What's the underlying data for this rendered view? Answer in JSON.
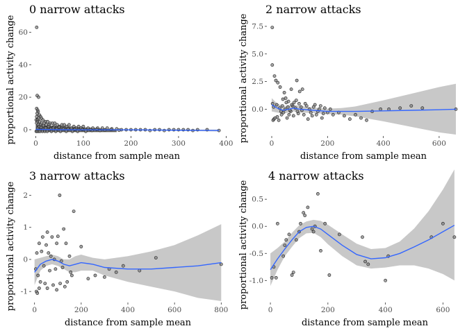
{
  "chart_data": [
    {
      "type": "scatter",
      "title": "0 narrow attacks",
      "xlabel": "distance from sample mean",
      "ylabel": "proportional activity change",
      "xlim": [
        -5,
        395
      ],
      "ylim": [
        -3,
        67
      ],
      "xticks": [
        0,
        100,
        200,
        300,
        400
      ],
      "yticks": [
        0,
        20,
        40,
        60
      ],
      "yticklabels": [
        "0",
        "20",
        "40",
        "60"
      ],
      "grid": false,
      "points": [
        [
          2,
          63
        ],
        [
          3,
          21
        ],
        [
          6,
          20
        ],
        [
          2,
          13
        ],
        [
          4,
          12
        ],
        [
          5,
          11
        ],
        [
          3,
          10
        ],
        [
          8,
          9
        ],
        [
          2,
          8
        ],
        [
          10,
          8
        ],
        [
          6,
          7
        ],
        [
          12,
          7
        ],
        [
          1,
          6
        ],
        [
          15,
          6
        ],
        [
          4,
          6
        ],
        [
          20,
          5
        ],
        [
          8,
          5
        ],
        [
          25,
          5
        ],
        [
          3,
          5
        ],
        [
          30,
          4
        ],
        [
          12,
          4
        ],
        [
          35,
          4
        ],
        [
          40,
          4
        ],
        [
          18,
          4
        ],
        [
          2,
          4
        ],
        [
          45,
          3
        ],
        [
          55,
          3
        ],
        [
          22,
          3
        ],
        [
          60,
          3
        ],
        [
          70,
          3
        ],
        [
          10,
          3
        ],
        [
          5,
          3
        ],
        [
          28,
          3
        ],
        [
          80,
          2
        ],
        [
          90,
          2
        ],
        [
          100,
          2
        ],
        [
          38,
          2
        ],
        [
          50,
          2
        ],
        [
          65,
          2
        ],
        [
          110,
          1
        ],
        [
          120,
          1
        ],
        [
          130,
          1
        ],
        [
          75,
          1
        ],
        [
          85,
          1
        ],
        [
          95,
          1
        ],
        [
          140,
          1
        ],
        [
          150,
          1
        ],
        [
          160,
          0.5
        ],
        [
          170,
          0.5
        ],
        [
          180,
          0
        ],
        [
          190,
          0
        ],
        [
          200,
          0
        ],
        [
          210,
          0
        ],
        [
          220,
          0
        ],
        [
          230,
          0
        ],
        [
          240,
          -0.5
        ],
        [
          250,
          0
        ],
        [
          260,
          0
        ],
        [
          270,
          -0.5
        ],
        [
          280,
          0
        ],
        [
          290,
          0
        ],
        [
          300,
          0
        ],
        [
          310,
          0
        ],
        [
          320,
          0
        ],
        [
          330,
          -0.5
        ],
        [
          340,
          0
        ],
        [
          360,
          0
        ],
        [
          385,
          -0.5
        ],
        [
          1,
          -1
        ],
        [
          3,
          -1
        ],
        [
          6,
          -1
        ],
        [
          9,
          -1
        ],
        [
          14,
          -1
        ],
        [
          19,
          -1
        ],
        [
          24,
          -1
        ],
        [
          33,
          -1
        ],
        [
          42,
          -1
        ],
        [
          52,
          -1
        ],
        [
          64,
          -1
        ],
        [
          77,
          -1
        ],
        [
          88,
          -1
        ],
        [
          105,
          -1
        ],
        [
          118,
          -0.5
        ],
        [
          135,
          -0.5
        ],
        [
          4,
          1
        ],
        [
          7,
          2
        ],
        [
          11,
          1.5
        ],
        [
          16,
          2.5
        ],
        [
          21,
          1
        ],
        [
          27,
          2
        ],
        [
          32,
          0.5
        ],
        [
          37,
          1
        ],
        [
          44,
          0.5
        ],
        [
          49,
          1.5
        ],
        [
          58,
          0.5
        ],
        [
          68,
          0.5
        ],
        [
          82,
          0.3
        ],
        [
          98,
          0.2
        ],
        [
          115,
          0.1
        ],
        [
          128,
          0.3
        ],
        [
          145,
          -0.2
        ],
        [
          158,
          0.1
        ],
        [
          175,
          -0.3
        ]
      ],
      "dense_band": {
        "x_from": 0,
        "x_to": 170,
        "y_from": -1,
        "y_to": 3
      },
      "smooth": {
        "x": [
          0,
          20,
          50,
          100,
          150,
          200,
          250,
          300,
          350,
          385
        ],
        "y": [
          0.2,
          0.1,
          0,
          -0.1,
          -0.1,
          -0.1,
          -0.2,
          -0.3,
          -0.4,
          -0.5
        ]
      },
      "band": {
        "lower": [
          -0.4,
          -0.3,
          -0.3,
          -0.3,
          -0.3,
          -0.4,
          -0.5,
          -0.7,
          -0.9,
          -1.1
        ],
        "upper": [
          0.8,
          0.5,
          0.3,
          0.1,
          0.1,
          0.2,
          0.1,
          0.1,
          0.1,
          0.1
        ]
      }
    },
    {
      "type": "scatter",
      "title": "2 narrow attacks",
      "xlabel": "distance from sample mean",
      "ylabel": "proportional activity change",
      "xlim": [
        -10,
        660
      ],
      "ylim": [
        -2.3,
        8.0
      ],
      "xticks": [
        0,
        200,
        400,
        600
      ],
      "yticks": [
        0,
        2.5,
        5,
        7.5
      ],
      "yticklabels": [
        "0.0",
        "2.5",
        "5.0",
        "7.5"
      ],
      "grid": false,
      "points": [
        [
          2,
          7.4
        ],
        [
          2,
          4.0
        ],
        [
          10,
          3.0
        ],
        [
          15,
          2.6
        ],
        [
          22,
          2.4
        ],
        [
          30,
          2.0
        ],
        [
          45,
          1.5
        ],
        [
          70,
          1.8
        ],
        [
          90,
          2.6
        ],
        [
          100,
          1.6
        ],
        [
          110,
          1.8
        ],
        [
          50,
          1.0
        ],
        [
          40,
          0.9
        ],
        [
          60,
          0.7
        ],
        [
          80,
          0.6
        ],
        [
          5,
          -1.0
        ],
        [
          8,
          -0.9
        ],
        [
          12,
          -0.8
        ],
        [
          20,
          -0.7
        ],
        [
          25,
          -1.0
        ],
        [
          35,
          -0.5
        ],
        [
          42,
          -0.3
        ],
        [
          48,
          0.0
        ],
        [
          55,
          -0.8
        ],
        [
          62,
          -0.5
        ],
        [
          68,
          -0.2
        ],
        [
          75,
          0.3
        ],
        [
          85,
          0.1
        ],
        [
          95,
          -0.4
        ],
        [
          105,
          0.2
        ],
        [
          115,
          -0.5
        ],
        [
          120,
          0.5
        ],
        [
          130,
          -0.9
        ],
        [
          140,
          -0.3
        ],
        [
          150,
          0.2
        ],
        [
          160,
          -0.5
        ],
        [
          170,
          0.0
        ],
        [
          180,
          -0.8
        ],
        [
          190,
          0.1
        ],
        [
          200,
          -0.3
        ],
        [
          210,
          0.0
        ],
        [
          220,
          -0.5
        ],
        [
          240,
          -0.3
        ],
        [
          260,
          -0.6
        ],
        [
          280,
          -0.9
        ],
        [
          300,
          -0.5
        ],
        [
          320,
          -0.8
        ],
        [
          340,
          -1.0
        ],
        [
          360,
          -0.2
        ],
        [
          390,
          0.0
        ],
        [
          420,
          0.0
        ],
        [
          460,
          0.1
        ],
        [
          500,
          0.3
        ],
        [
          540,
          0.1
        ],
        [
          660,
          0.0
        ],
        [
          3,
          0.5
        ],
        [
          7,
          0.2
        ],
        [
          18,
          0.4
        ],
        [
          28,
          0.1
        ],
        [
          33,
          -0.2
        ],
        [
          38,
          0.3
        ],
        [
          52,
          0.6
        ],
        [
          58,
          0.2
        ],
        [
          65,
          -0.1
        ],
        [
          72,
          0.4
        ],
        [
          78,
          -0.6
        ],
        [
          88,
          0.8
        ],
        [
          92,
          -0.2
        ],
        [
          98,
          0.5
        ],
        [
          108,
          -0.1
        ],
        [
          125,
          0.3
        ],
        [
          135,
          0.0
        ],
        [
          145,
          -0.6
        ],
        [
          155,
          0.4
        ],
        [
          165,
          -0.2
        ],
        [
          175,
          0.3
        ],
        [
          185,
          -0.4
        ]
      ],
      "smooth": {
        "x": [
          0,
          20,
          40,
          60,
          80,
          100,
          150,
          200,
          250,
          300,
          400,
          500,
          600,
          660
        ],
        "y": [
          0.4,
          0.1,
          -0.1,
          0.0,
          0.1,
          0.0,
          -0.1,
          -0.2,
          -0.2,
          -0.2,
          -0.15,
          -0.1,
          -0.05,
          0.0
        ]
      },
      "band": {
        "lower": [
          -0.2,
          -0.3,
          -0.4,
          -0.3,
          -0.2,
          -0.3,
          -0.35,
          -0.45,
          -0.5,
          -0.65,
          -1.1,
          -1.6,
          -2.1,
          -2.3
        ],
        "upper": [
          1.0,
          0.5,
          0.3,
          0.3,
          0.4,
          0.3,
          0.15,
          0.05,
          0.1,
          0.25,
          0.8,
          1.4,
          2.0,
          2.3
        ]
      }
    },
    {
      "type": "scatter",
      "title": "3 narrow attacks",
      "xlabel": "distance from sample mean",
      "ylabel": "proportional activity change",
      "xlim": [
        -5,
        805
      ],
      "ylim": [
        -1.3,
        2.25
      ],
      "xticks": [
        0,
        200,
        400,
        600,
        800
      ],
      "yticks": [
        -1,
        0,
        1,
        2
      ],
      "yticklabels": [
        "-1",
        "0",
        "1",
        "2"
      ],
      "grid": false,
      "points": [
        [
          108,
          2.0
        ],
        [
          168,
          1.5
        ],
        [
          125,
          0.95
        ],
        [
          55,
          0.85
        ],
        [
          100,
          0.72
        ],
        [
          75,
          0.7
        ],
        [
          35,
          0.7
        ],
        [
          50,
          0.45
        ],
        [
          20,
          0.5
        ],
        [
          95,
          0.5
        ],
        [
          135,
          0.5
        ],
        [
          10,
          0.2
        ],
        [
          30,
          0.25
        ],
        [
          60,
          0.2
        ],
        [
          70,
          0.1
        ],
        [
          85,
          0.0
        ],
        [
          115,
          -0.05
        ],
        [
          150,
          0.1
        ],
        [
          40,
          -0.2
        ],
        [
          65,
          -0.35
        ],
        [
          90,
          -0.3
        ],
        [
          120,
          -0.25
        ],
        [
          155,
          -0.4
        ],
        [
          5,
          -0.3
        ],
        [
          15,
          -0.5
        ],
        [
          25,
          -0.7
        ],
        [
          45,
          -0.75
        ],
        [
          80,
          -0.8
        ],
        [
          110,
          -0.75
        ],
        [
          140,
          -0.7
        ],
        [
          8,
          -1.0
        ],
        [
          12,
          -1.05
        ],
        [
          20,
          -0.9
        ],
        [
          55,
          -0.9
        ],
        [
          95,
          -0.95
        ],
        [
          130,
          -0.85
        ],
        [
          160,
          -0.5
        ],
        [
          200,
          0.4
        ],
        [
          230,
          -0.6
        ],
        [
          260,
          -0.5
        ],
        [
          300,
          -0.55
        ],
        [
          320,
          -0.3
        ],
        [
          350,
          -0.4
        ],
        [
          380,
          -0.2
        ],
        [
          450,
          -0.35
        ],
        [
          520,
          0.05
        ],
        [
          800,
          -0.15
        ]
      ],
      "smooth": {
        "x": [
          0,
          25,
          50,
          75,
          100,
          125,
          150,
          175,
          200,
          250,
          300,
          400,
          500,
          600,
          700,
          800
        ],
        "y": [
          -0.4,
          -0.15,
          -0.05,
          0.0,
          -0.05,
          -0.15,
          -0.2,
          -0.15,
          -0.1,
          -0.15,
          -0.25,
          -0.3,
          -0.3,
          -0.25,
          -0.2,
          -0.1
        ]
      },
      "band": {
        "lower": [
          -0.8,
          -0.35,
          -0.2,
          -0.15,
          -0.2,
          -0.3,
          -0.4,
          -0.4,
          -0.35,
          -0.35,
          -0.5,
          -0.7,
          -0.85,
          -1.0,
          -1.2,
          -1.3
        ],
        "upper": [
          0.0,
          0.05,
          0.1,
          0.15,
          0.1,
          0.0,
          0.0,
          0.1,
          0.15,
          0.05,
          0.0,
          0.1,
          0.25,
          0.45,
          0.75,
          1.1
        ]
      }
    },
    {
      "type": "scatter",
      "title": "4 narrow attacks",
      "xlabel": "distance from sample mean",
      "ylabel": "proportional activity change",
      "xlim": [
        -5,
        645
      ],
      "ylim": [
        -1.38,
        0.72
      ],
      "xticks": [
        0,
        200,
        400,
        600
      ],
      "yticks": [
        -1,
        -0.5,
        0,
        0.5
      ],
      "yticklabels": [
        "-1.0",
        "-0.5",
        "0.0",
        "0.5"
      ],
      "grid": false,
      "points": [
        [
          5,
          -0.95
        ],
        [
          12,
          -0.75
        ],
        [
          20,
          -0.95
        ],
        [
          25,
          0.05
        ],
        [
          45,
          -0.55
        ],
        [
          50,
          -0.35
        ],
        [
          55,
          -0.25
        ],
        [
          65,
          -0.15
        ],
        [
          75,
          -0.9
        ],
        [
          80,
          -0.85
        ],
        [
          90,
          -0.25
        ],
        [
          100,
          -0.1
        ],
        [
          105,
          0.05
        ],
        [
          115,
          0.25
        ],
        [
          120,
          0.2
        ],
        [
          130,
          0.35
        ],
        [
          145,
          -0.05
        ],
        [
          150,
          -0.1
        ],
        [
          155,
          0.0
        ],
        [
          165,
          0.6
        ],
        [
          175,
          -0.45
        ],
        [
          190,
          0.05
        ],
        [
          205,
          -0.9
        ],
        [
          240,
          -0.15
        ],
        [
          320,
          -0.2
        ],
        [
          330,
          -0.65
        ],
        [
          340,
          -0.7
        ],
        [
          400,
          -1.0
        ],
        [
          410,
          -0.55
        ],
        [
          560,
          -0.2
        ],
        [
          600,
          0.05
        ],
        [
          640,
          -0.2
        ]
      ],
      "smooth": {
        "x": [
          0,
          25,
          50,
          75,
          100,
          125,
          150,
          175,
          200,
          250,
          300,
          350,
          400,
          450,
          500,
          550,
          600,
          640
        ],
        "y": [
          -0.8,
          -0.6,
          -0.42,
          -0.25,
          -0.1,
          -0.02,
          0.0,
          -0.05,
          -0.15,
          -0.35,
          -0.52,
          -0.6,
          -0.58,
          -0.5,
          -0.38,
          -0.25,
          -0.1,
          0.02
        ]
      },
      "band": {
        "lower": [
          -1.1,
          -0.8,
          -0.55,
          -0.38,
          -0.22,
          -0.13,
          -0.12,
          -0.2,
          -0.33,
          -0.55,
          -0.72,
          -0.78,
          -0.76,
          -0.72,
          -0.72,
          -0.78,
          -0.88,
          -1.0
        ],
        "upper": [
          -0.5,
          -0.4,
          -0.28,
          -0.12,
          0.02,
          0.09,
          0.12,
          0.1,
          0.03,
          -0.15,
          -0.32,
          -0.42,
          -0.4,
          -0.28,
          -0.04,
          0.28,
          0.68,
          1.05
        ]
      }
    }
  ],
  "colors": {
    "point_fill": "#7f7f7f",
    "point_stroke": "#1a1a1a",
    "smooth_line": "#3366ff",
    "band_fill": "#c8c8c8"
  }
}
